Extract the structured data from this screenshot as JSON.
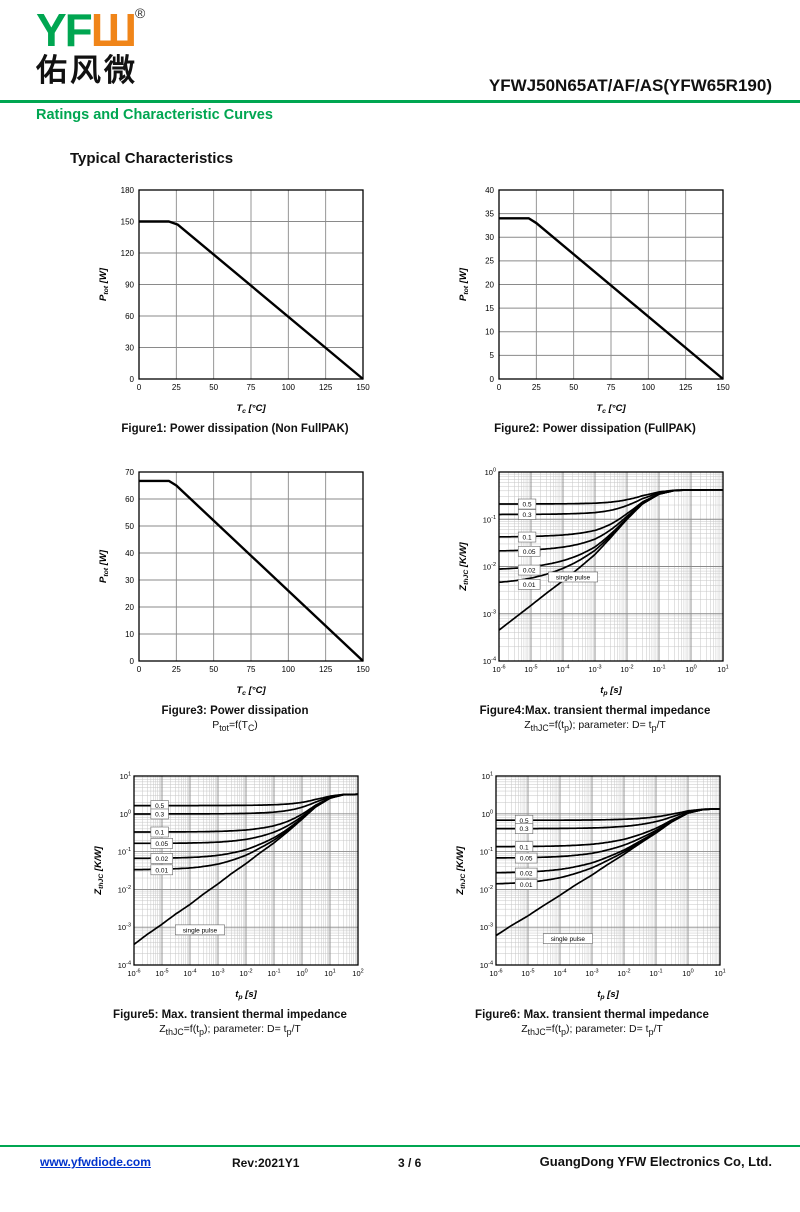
{
  "header": {
    "logo_text_green": "YF",
    "logo_text_orange": "Ш",
    "logo_reg": "®",
    "logo_cn": "佑风微",
    "part_number": "YFWJ50N65AT/AF/AS(YFW65R190)",
    "section_title": "Ratings and Characteristic Curves",
    "accent_green": "#00A651",
    "accent_orange": "#F08519"
  },
  "page": {
    "heading": "Typical Characteristics"
  },
  "footer": {
    "website": "www.yfwdiode.com",
    "rev": "Rev:2021Y1",
    "page_number": "3 / 6",
    "company": "GuangDong YFW Electronics Co, Ltd."
  },
  "chart_data": [
    {
      "id": "fig1",
      "type": "line",
      "caption": "Figure1: Power dissipation (Non FullPAK)",
      "subtitle": "",
      "xlabel": "T_c_ [°C]",
      "ylabel": "P_tot_ [W]",
      "xlim": [
        0,
        150
      ],
      "ylim": [
        0,
        180
      ],
      "xticks": [
        0,
        25,
        50,
        75,
        100,
        125,
        150
      ],
      "yticks": [
        0,
        30,
        60,
        90,
        120,
        150,
        180
      ],
      "points": [
        [
          0,
          150
        ],
        [
          20,
          150
        ],
        [
          26,
          147
        ],
        [
          150,
          0
        ]
      ]
    },
    {
      "id": "fig2",
      "type": "line",
      "caption": "Figure2: Power dissipation (FullPAK)",
      "subtitle": "",
      "xlabel": "T_c_ [°C]",
      "ylabel": "P_tot_ [W]",
      "xlim": [
        0,
        150
      ],
      "ylim": [
        0,
        40
      ],
      "xticks": [
        0,
        25,
        50,
        75,
        100,
        125,
        150
      ],
      "yticks": [
        0,
        5,
        10,
        15,
        20,
        25,
        30,
        35,
        40
      ],
      "points": [
        [
          0,
          34
        ],
        [
          20,
          34
        ],
        [
          25,
          33
        ],
        [
          150,
          0
        ]
      ]
    },
    {
      "id": "fig3",
      "type": "line",
      "caption": "Figure3: Power  dissipation",
      "subtitle": "P_tot_=f(T_C_)",
      "xlabel": "T_c_ [°C]",
      "ylabel": "P_tot_ [W]",
      "xlim": [
        0,
        150
      ],
      "ylim": [
        0,
        70
      ],
      "xticks": [
        0,
        25,
        50,
        75,
        100,
        125,
        150
      ],
      "yticks": [
        0,
        10,
        20,
        30,
        40,
        50,
        60,
        70
      ],
      "points": [
        [
          0,
          66.7
        ],
        [
          20,
          66.7
        ],
        [
          25,
          65
        ],
        [
          150,
          0
        ]
      ]
    },
    {
      "id": "fig4",
      "type": "loglog",
      "caption": "Figure4:Max. transient thermal impedance",
      "subtitle": "Z_thJC_=f(t_p_); parameter: D= t_p_/T",
      "xlabel": "t_p_ [s]",
      "ylabel": "Z_thJC_ [K/W]",
      "xexp": [
        -6,
        1
      ],
      "yexp": [
        -4,
        0
      ],
      "rth": 0.42,
      "duty_cycles": [
        0.5,
        0.3,
        0.1,
        0.05,
        0.02,
        0.01
      ],
      "label_x": 4e-06,
      "single_pulse_label": "single pulse",
      "sp_label_pos": [
        3.5e-05,
        0.006
      ],
      "single_pulse": [
        [
          1e-06,
          0.00045
        ],
        [
          3e-06,
          0.0008
        ],
        [
          1e-05,
          0.0015
        ],
        [
          3e-05,
          0.0027
        ],
        [
          0.0001,
          0.005
        ],
        [
          0.0003,
          0.009
        ],
        [
          0.001,
          0.018
        ],
        [
          0.003,
          0.04
        ],
        [
          0.01,
          0.1
        ],
        [
          0.03,
          0.21
        ],
        [
          0.1,
          0.34
        ],
        [
          0.3,
          0.405
        ],
        [
          1,
          0.418
        ],
        [
          10,
          0.42
        ]
      ]
    },
    {
      "id": "fig5",
      "type": "loglog",
      "caption": "Figure5: Max. transient thermal impedance",
      "subtitle": "Z_thJC_=f(t_p_); parameter: D= t_p_/T",
      "xlabel": "t_p_ [s]",
      "ylabel": "Z_thJC_ [K/W]",
      "xexp": [
        -6,
        2
      ],
      "yexp": [
        -4,
        1
      ],
      "rth": 3.3,
      "duty_cycles": [
        0.5,
        0.3,
        0.1,
        0.05,
        0.02,
        0.01
      ],
      "label_x": 4e-06,
      "single_pulse_label": "single pulse",
      "sp_label_pos": [
        3e-05,
        0.00085
      ],
      "single_pulse": [
        [
          1e-06,
          0.00035
        ],
        [
          3e-06,
          0.00065
        ],
        [
          1e-05,
          0.0012
        ],
        [
          3e-05,
          0.0022
        ],
        [
          0.0001,
          0.004
        ],
        [
          0.0003,
          0.0075
        ],
        [
          0.001,
          0.014
        ],
        [
          0.003,
          0.026
        ],
        [
          0.01,
          0.048
        ],
        [
          0.03,
          0.09
        ],
        [
          0.1,
          0.17
        ],
        [
          0.3,
          0.33
        ],
        [
          1,
          0.72
        ],
        [
          3,
          1.5
        ],
        [
          10,
          2.6
        ],
        [
          30,
          3.2
        ],
        [
          100,
          3.3
        ]
      ]
    },
    {
      "id": "fig6",
      "type": "loglog",
      "caption": "Figure6: Max. transient thermal impedance",
      "subtitle": "Z_thJC_=f(t_p_); parameter: D= t_p_/T",
      "xlabel": "t_p_ [s]",
      "ylabel": "Z_thJC_ [K/W]",
      "xexp": [
        -6,
        1
      ],
      "yexp": [
        -4,
        1
      ],
      "rth": 1.35,
      "duty_cycles": [
        0.5,
        0.3,
        0.1,
        0.05,
        0.02,
        0.01
      ],
      "label_x": 4e-06,
      "single_pulse_label": "single pulse",
      "sp_label_pos": [
        3e-05,
        0.0005
      ],
      "single_pulse": [
        [
          1e-06,
          0.0006
        ],
        [
          3e-06,
          0.0011
        ],
        [
          1e-05,
          0.002
        ],
        [
          3e-05,
          0.0037
        ],
        [
          0.0001,
          0.007
        ],
        [
          0.0003,
          0.013
        ],
        [
          0.001,
          0.024
        ],
        [
          0.003,
          0.045
        ],
        [
          0.01,
          0.085
        ],
        [
          0.03,
          0.16
        ],
        [
          0.1,
          0.31
        ],
        [
          0.3,
          0.6
        ],
        [
          1,
          1.05
        ],
        [
          3,
          1.3
        ],
        [
          10,
          1.35
        ]
      ]
    }
  ]
}
